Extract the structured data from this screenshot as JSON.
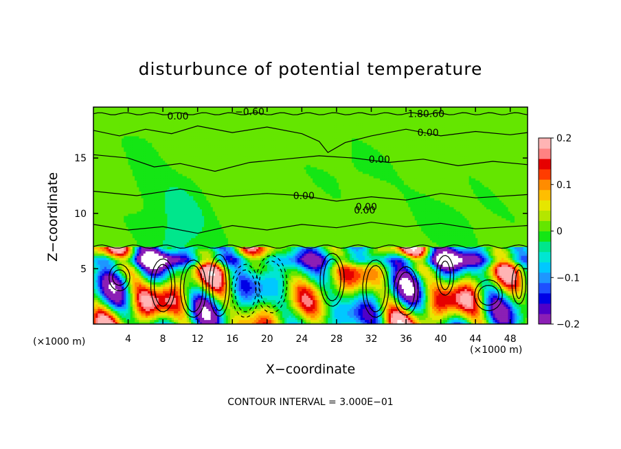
{
  "chart_data": {
    "type": "heatmap",
    "title": "disturbunce of potential temperature",
    "xlabel": "X−coordinate",
    "ylabel": "Z−coordinate",
    "x_unit_left": "(×1000 m)",
    "x_unit_right": "(×1000 m)",
    "footer": "CONTOUR INTERVAL = 3.000E−01",
    "xlim": [
      0,
      50
    ],
    "ylim": [
      0,
      19.6
    ],
    "x_ticks": [
      4,
      8,
      12,
      16,
      20,
      24,
      28,
      32,
      36,
      40,
      44,
      48
    ],
    "y_ticks": [
      5,
      10,
      15
    ],
    "colorbar": {
      "range": [
        -0.2,
        0.2
      ],
      "ticks": [
        {
          "value": 0.2,
          "label": "0.2"
        },
        {
          "value": 0.1,
          "label": "0.1"
        },
        {
          "value": 0,
          "label": "0"
        },
        {
          "value": -0.1,
          "label": "−0.1"
        },
        {
          "value": -0.2,
          "label": "−0.2"
        }
      ],
      "colors": [
        "#8b1fb5",
        "#4f00c8",
        "#0000e6",
        "#1e50ff",
        "#1e96ff",
        "#00c8ff",
        "#00e6d2",
        "#00e68c",
        "#14e614",
        "#64e600",
        "#b4e600",
        "#e6e600",
        "#ffbe00",
        "#ff8c00",
        "#ff3c00",
        "#e60000",
        "#ff8282",
        "#ffb4b4"
      ]
    },
    "contour_labels": [
      {
        "x": 16.3,
        "y": 19.2,
        "text": "−0.60"
      },
      {
        "x": 8.5,
        "y": 18.8,
        "text": "0.00"
      },
      {
        "x": 36.2,
        "y": 19.0,
        "text": "1.80.60"
      },
      {
        "x": 37.3,
        "y": 17.3,
        "text": "0.00"
      },
      {
        "x": 31.7,
        "y": 14.9,
        "text": "0.00"
      },
      {
        "x": 23.0,
        "y": 11.6,
        "text": "0.00"
      },
      {
        "x": 30.2,
        "y": 10.6,
        "text": "0.00"
      },
      {
        "x": 30.0,
        "y": 10.3,
        "text": "0.00"
      }
    ]
  }
}
